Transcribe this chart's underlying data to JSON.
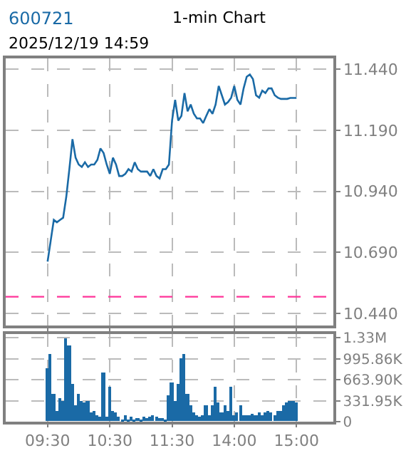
{
  "chart_data": [
    {
      "type": "line",
      "title": "600721",
      "annotations": [
        "1-min Chart",
        "2025/12/19 14:59"
      ],
      "categories": [
        null,
        null,
        null,
        null,
        null,
        null,
        null,
        null,
        null,
        null,
        null,
        null,
        null,
        null,
        null,
        null,
        null,
        null,
        null,
        null,
        null,
        null,
        null,
        null,
        null,
        null,
        null,
        null,
        null,
        null,
        null,
        null,
        null,
        null,
        null,
        null,
        null,
        null,
        null,
        null,
        null,
        null,
        null,
        null,
        null,
        null,
        null,
        null,
        null,
        null,
        null,
        null,
        null,
        null,
        null,
        null,
        null,
        null,
        null,
        null,
        null,
        null,
        null,
        null,
        null,
        null,
        null,
        null,
        null,
        null,
        null,
        null,
        null,
        null,
        null,
        null,
        null,
        null,
        null,
        null,
        null
      ],
      "series": [
        {
          "color": "#1a6aa6",
          "values": [
            10.652,
            10.737,
            10.823,
            10.813,
            10.823,
            10.832,
            10.917,
            11.031,
            11.154,
            11.078,
            11.05,
            11.04,
            11.059,
            11.04,
            11.05,
            11.05,
            11.069,
            11.116,
            11.097,
            11.05,
            11.012,
            11.078,
            11.05,
            11.003,
            11.003,
            11.012,
            11.031,
            11.021,
            11.059,
            11.031,
            11.021,
            11.021,
            11.021,
            11.003,
            11.031,
            11.003,
            10.993,
            11.031,
            11.031,
            11.05,
            11.23,
            11.315,
            11.23,
            11.249,
            11.343,
            11.268,
            11.296,
            11.258,
            11.239,
            11.239,
            11.22,
            11.249,
            11.277,
            11.258,
            11.296,
            11.372,
            11.334,
            11.296,
            11.306,
            11.324,
            11.372,
            11.315,
            11.296,
            11.362,
            11.41,
            11.419,
            11.4,
            11.334,
            11.324,
            11.353,
            11.343,
            11.362,
            11.362,
            11.334,
            11.324,
            11.319,
            11.319,
            11.319,
            11.323,
            11.323,
            11.323
          ]
        }
      ],
      "ylim": [
        10.389,
        11.485
      ],
      "yticks": [
        {
          "value": 10.44,
          "label": "10.440"
        },
        {
          "value": 10.69,
          "label": "10.690"
        },
        {
          "value": 10.94,
          "label": "10.940"
        },
        {
          "value": 11.19,
          "label": "11.190"
        },
        {
          "value": 11.44,
          "label": "11.440"
        }
      ],
      "ref_lines": [
        {
          "axis": "y",
          "value": 10.508,
          "color": "#ff3399",
          "line_style": "dashed"
        }
      ],
      "tick_labels": "y",
      "grid": true
    },
    {
      "type": "bar",
      "color": "#1a6aa6",
      "categories": [
        "09:30",
        null,
        null,
        null,
        null,
        null,
        null,
        null,
        null,
        null,
        null,
        null,
        null,
        null,
        null,
        null,
        null,
        null,
        null,
        null,
        "10:30",
        null,
        null,
        null,
        null,
        null,
        null,
        null,
        null,
        null,
        null,
        null,
        null,
        null,
        null,
        null,
        null,
        null,
        null,
        null,
        "11:30",
        null,
        null,
        null,
        null,
        null,
        null,
        null,
        null,
        null,
        null,
        null,
        null,
        null,
        null,
        null,
        null,
        null,
        null,
        null,
        "14:00",
        null,
        null,
        null,
        null,
        null,
        null,
        null,
        null,
        null,
        null,
        null,
        null,
        null,
        null,
        null,
        null,
        null,
        null,
        null,
        "15:00"
      ],
      "values": [
        850000,
        1070000,
        440000,
        180000,
        370000,
        330000,
        1330000,
        1220000,
        590000,
        260000,
        440000,
        330000,
        300000,
        330000,
        150000,
        180000,
        110000,
        70000,
        780000,
        70000,
        550000,
        180000,
        150000,
        70000,
        40000,
        110000,
        40000,
        70000,
        40000,
        60000,
        40000,
        70000,
        50000,
        70000,
        110000,
        70000,
        60000,
        50000,
        40000,
        410000,
        630000,
        330000,
        590000,
        1000000,
        1070000,
        440000,
        260000,
        150000,
        110000,
        70000,
        110000,
        260000,
        110000,
        260000,
        550000,
        300000,
        150000,
        260000,
        180000,
        550000,
        110000,
        150000,
        260000,
        110000,
        110000,
        110000,
        120000,
        90000,
        150000,
        110000,
        150000,
        160000,
        150000,
        110000,
        180000,
        160000,
        260000,
        300000,
        330000,
        320000,
        300000
      ],
      "ylim": [
        0,
        1390000
      ],
      "yticks": [
        {
          "value": 0,
          "label": "0"
        },
        {
          "value": 331950,
          "label": "331.95K"
        },
        {
          "value": 663900,
          "label": "663.90K"
        },
        {
          "value": 995860,
          "label": "995.86K"
        },
        {
          "value": 1330000,
          "label": "1.33M"
        }
      ],
      "grid": true
    }
  ]
}
